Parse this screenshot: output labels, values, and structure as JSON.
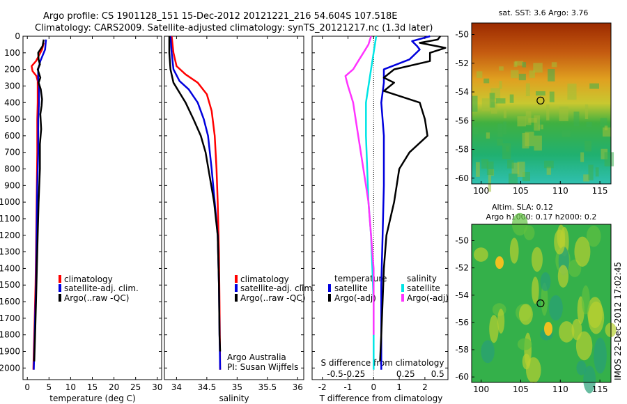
{
  "header": {
    "line1": "Argo profile: CS 1901128_151 15-Dec-2012 20121221_216 54.604S 107.518E",
    "line2": "Climatology: CARS2009. Satellite-adjusted climatology: synTS_20121217.nc (1.3d later)"
  },
  "side_text": "IMOS 22-Dec-2012 17:02:45",
  "colors": {
    "red": "#ff0000",
    "blue": "#0000dd",
    "black": "#000000",
    "cyan": "#00e5e5",
    "magenta": "#ff33ff"
  },
  "chart_data": [
    {
      "type": "line",
      "xlabel": "temperature (deg C)",
      "ylabel": "",
      "xlim": [
        -1,
        31
      ],
      "ylim": [
        2070,
        0
      ],
      "xticks": [
        0,
        5,
        10,
        15,
        20,
        25,
        30
      ],
      "yticks": [
        0,
        100,
        200,
        300,
        400,
        500,
        600,
        700,
        800,
        900,
        1000,
        1100,
        1200,
        1300,
        1400,
        1500,
        1600,
        1700,
        1800,
        1900,
        2000
      ],
      "legend": {
        "placement": "lower-center",
        "entries": [
          "climatology",
          "satellite-adj. clim.",
          "Argo(..raw -QC)"
        ]
      },
      "series": [
        {
          "name": "climatology",
          "color": "red",
          "points": [
            [
              3.8,
              40
            ],
            [
              3.4,
              80
            ],
            [
              2.0,
              150
            ],
            [
              1.0,
              180
            ],
            [
              1.2,
              210
            ],
            [
              2.1,
              240
            ],
            [
              2.4,
              270
            ],
            [
              2.4,
              300
            ],
            [
              2.4,
              400
            ],
            [
              2.3,
              500
            ],
            [
              2.3,
              700
            ],
            [
              2.2,
              900
            ],
            [
              2.1,
              1100
            ],
            [
              2.0,
              1300
            ],
            [
              1.9,
              1500
            ],
            [
              1.7,
              1700
            ],
            [
              1.5,
              1900
            ],
            [
              1.4,
              2010
            ]
          ]
        },
        {
          "name": "satellite-adj. clim.",
          "color": "blue",
          "points": [
            [
              4.3,
              20
            ],
            [
              4.1,
              80
            ],
            [
              3.0,
              150
            ],
            [
              2.5,
              200
            ],
            [
              2.5,
              260
            ],
            [
              2.7,
              300
            ],
            [
              2.7,
              400
            ],
            [
              2.5,
              500
            ],
            [
              2.5,
              700
            ],
            [
              2.3,
              900
            ],
            [
              2.2,
              1100
            ],
            [
              2.1,
              1300
            ],
            [
              2.0,
              1500
            ],
            [
              1.8,
              1700
            ],
            [
              1.6,
              1900
            ],
            [
              1.5,
              2010
            ]
          ]
        },
        {
          "name": "Argo(..raw -QC)",
          "color": "black",
          "points": [
            [
              3.8,
              20
            ],
            [
              3.5,
              60
            ],
            [
              2.5,
              100
            ],
            [
              2.6,
              140
            ],
            [
              2.9,
              170
            ],
            [
              2.4,
              200
            ],
            [
              3.0,
              250
            ],
            [
              2.6,
              280
            ],
            [
              3.1,
              320
            ],
            [
              3.4,
              380
            ],
            [
              3.3,
              420
            ],
            [
              3.0,
              470
            ],
            [
              3.2,
              560
            ],
            [
              2.9,
              650
            ],
            [
              2.9,
              800
            ],
            [
              2.6,
              1000
            ],
            [
              2.4,
              1200
            ],
            [
              2.2,
              1400
            ],
            [
              2.0,
              1600
            ],
            [
              1.8,
              1800
            ],
            [
              1.6,
              1960
            ]
          ]
        }
      ]
    },
    {
      "type": "line",
      "xlabel": "salinity",
      "ylabel": "",
      "xlim": [
        33.8,
        36.1
      ],
      "ylim": [
        2070,
        0
      ],
      "xticks": [
        34,
        34.5,
        35,
        35.5,
        36
      ],
      "xtick_labels": [
        "34",
        "34.5",
        "35",
        "35.5",
        "36"
      ],
      "legend": {
        "placement": "lower-center",
        "entries": [
          "climatology",
          "satellite-adj. clim.",
          "Argo(..raw -QC)"
        ]
      },
      "annotations": [
        "Argo Australia",
        "PI: Susan Wijffels"
      ],
      "series": [
        {
          "name": "climatology",
          "color": "red",
          "points": [
            [
              33.92,
              0
            ],
            [
              33.95,
              100
            ],
            [
              34.0,
              180
            ],
            [
              34.15,
              230
            ],
            [
              34.35,
              280
            ],
            [
              34.5,
              350
            ],
            [
              34.58,
              450
            ],
            [
              34.63,
              600
            ],
            [
              34.66,
              800
            ],
            [
              34.68,
              1000
            ],
            [
              34.7,
              1300
            ],
            [
              34.71,
              1600
            ],
            [
              34.72,
              2010
            ]
          ]
        },
        {
          "name": "satellite-adj. clim.",
          "color": "blue",
          "points": [
            [
              33.9,
              0
            ],
            [
              33.92,
              100
            ],
            [
              33.95,
              200
            ],
            [
              34.05,
              270
            ],
            [
              34.2,
              320
            ],
            [
              34.35,
              400
            ],
            [
              34.45,
              500
            ],
            [
              34.52,
              600
            ],
            [
              34.58,
              800
            ],
            [
              34.63,
              1000
            ],
            [
              34.68,
              1200
            ],
            [
              34.7,
              1500
            ],
            [
              34.71,
              1800
            ],
            [
              34.72,
              2010
            ]
          ]
        },
        {
          "name": "Argo(..raw -QC)",
          "color": "black",
          "points": [
            [
              33.88,
              0
            ],
            [
              33.88,
              100
            ],
            [
              33.9,
              200
            ],
            [
              33.95,
              280
            ],
            [
              34.05,
              340
            ],
            [
              34.15,
              400
            ],
            [
              34.28,
              500
            ],
            [
              34.4,
              600
            ],
            [
              34.48,
              700
            ],
            [
              34.55,
              850
            ],
            [
              34.62,
              1000
            ],
            [
              34.68,
              1200
            ],
            [
              34.7,
              1500
            ],
            [
              34.71,
              1800
            ],
            [
              34.72,
              1900
            ]
          ]
        }
      ]
    },
    {
      "type": "line",
      "xlabel": "T difference from climatology",
      "x2label": "S difference from climatology",
      "ylabel": "",
      "xlim": [
        -2.4,
        2.9
      ],
      "ylim": [
        2070,
        0
      ],
      "xticks": [
        -2,
        -1,
        0,
        1,
        2
      ],
      "x2_tick_values": [
        -1.5,
        -0.75,
        1.25,
        2.5
      ],
      "x2_tick_labels": [
        "-0.5",
        "-0.25",
        "0.25",
        "0.5"
      ],
      "legend": {
        "placement": "lower-center",
        "group_titles": [
          "temperature",
          "salinity"
        ],
        "entries": [
          "satellite",
          "Argo(-adj)",
          "satellite",
          "Argo(-adj)"
        ]
      },
      "series": [
        {
          "name": "satellite",
          "color": "blue",
          "points": [
            [
              2.2,
              0
            ],
            [
              1.5,
              30
            ],
            [
              1.7,
              60
            ],
            [
              1.8,
              80
            ],
            [
              1.4,
              140
            ],
            [
              0.4,
              200
            ],
            [
              0.4,
              280
            ],
            [
              0.3,
              400
            ],
            [
              0.4,
              600
            ],
            [
              0.4,
              900
            ],
            [
              0.35,
              1200
            ],
            [
              0.3,
              1500
            ],
            [
              0.3,
              1800
            ],
            [
              0.3,
              2010
            ]
          ]
        },
        {
          "name": "Argo(-adj)",
          "color": "black",
          "points": [
            [
              2.6,
              0
            ],
            [
              2.5,
              20
            ],
            [
              1.8,
              40
            ],
            [
              2.8,
              70
            ],
            [
              2.2,
              100
            ],
            [
              2.2,
              150
            ],
            [
              0.8,
              200
            ],
            [
              0.4,
              250
            ],
            [
              0.8,
              280
            ],
            [
              0.4,
              330
            ],
            [
              1.8,
              400
            ],
            [
              2.0,
              500
            ],
            [
              2.1,
              600
            ],
            [
              1.4,
              700
            ],
            [
              1.0,
              800
            ],
            [
              0.8,
              1000
            ],
            [
              0.5,
              1200
            ],
            [
              0.4,
              1400
            ],
            [
              0.35,
              1600
            ],
            [
              0.3,
              1800
            ],
            [
              0.25,
              1960
            ]
          ]
        },
        {
          "name": "satellite",
          "color": "cyan",
          "points": [
            [
              0.1,
              0
            ],
            [
              0.0,
              100
            ],
            [
              -0.1,
              200
            ],
            [
              -0.2,
              300
            ],
            [
              -0.3,
              400
            ],
            [
              -0.3,
              500
            ],
            [
              -0.3,
              600
            ],
            [
              -0.25,
              800
            ],
            [
              -0.2,
              1000
            ],
            [
              -0.1,
              1200
            ],
            [
              -0.05,
              1400
            ],
            [
              0.0,
              1600
            ],
            [
              0.0,
              1800
            ],
            [
              0.0,
              2010
            ]
          ]
        },
        {
          "name": "Argo(-adj)",
          "color": "magenta",
          "points": [
            [
              -0.1,
              0
            ],
            [
              -0.2,
              50
            ],
            [
              -0.4,
              100
            ],
            [
              -0.6,
              150
            ],
            [
              -0.8,
              200
            ],
            [
              -1.1,
              240
            ],
            [
              -1.0,
              300
            ],
            [
              -0.8,
              400
            ],
            [
              -0.7,
              500
            ],
            [
              -0.6,
              600
            ],
            [
              -0.5,
              700
            ],
            [
              -0.4,
              800
            ],
            [
              -0.3,
              900
            ],
            [
              -0.2,
              1000
            ],
            [
              -0.1,
              1200
            ],
            [
              0.0,
              1400
            ],
            [
              0.0,
              1600
            ],
            [
              0.0,
              1800
            ]
          ]
        }
      ]
    },
    {
      "type": "heatmap",
      "title": "sat. SST: 3.6 Argo: 3.76",
      "xlim": [
        98.8,
        116.4
      ],
      "ylim": [
        -60.4,
        -49.2
      ],
      "xticks": [
        100,
        105,
        110,
        115
      ],
      "yticks": [
        -50,
        -52,
        -54,
        -56,
        -58,
        -60
      ],
      "marker": {
        "x": 107.5,
        "y": -54.6
      }
    },
    {
      "type": "heatmap",
      "title": "Altim. SLA: 0.12",
      "subtitle": "Argo h1000: 0.17 h2000: 0.2",
      "xlim": [
        98.8,
        116.4
      ],
      "ylim": [
        -60.4,
        -48.8
      ],
      "xticks": [
        100,
        105,
        110,
        115
      ],
      "yticks": [
        -50,
        -52,
        -54,
        -56,
        -58,
        -60
      ],
      "marker": {
        "x": 107.5,
        "y": -54.6
      }
    }
  ]
}
